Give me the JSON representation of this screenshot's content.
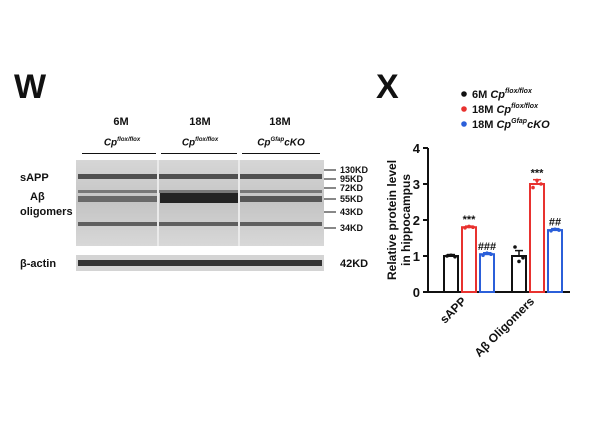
{
  "panel_w": {
    "letter": "W",
    "groups": [
      {
        "age": "6M",
        "genotype": "Cp",
        "superscript": "flox/flox",
        "suffix": ""
      },
      {
        "age": "18M",
        "genotype": "Cp",
        "superscript": "flox/flox",
        "suffix": ""
      },
      {
        "age": "18M",
        "genotype": "Cp",
        "superscript": "Gfap",
        "suffix": "cKO"
      }
    ],
    "band_labels": {
      "sapp": "sAPP",
      "abeta_line1": "Aβ",
      "abeta_line2": "oligomers",
      "actin": "β-actin"
    },
    "mw_markers": [
      "130KD",
      "95KD",
      "72KD",
      "55KD",
      "43KD",
      "34KD"
    ],
    "actin_mw": "42KD"
  },
  "panel_x": {
    "letter": "X",
    "chart_data": {
      "type": "bar",
      "ylabel_line1": "Relative protein level",
      "ylabel_line2": "in hippocampus",
      "ylim": [
        0,
        4
      ],
      "yticks": [
        "0",
        "1",
        "2",
        "3",
        "4"
      ],
      "categories": [
        "sAPP",
        "Aβ Oligomers"
      ],
      "series": [
        {
          "name_prefix": "6M Cp",
          "name_sup": "flox/flox",
          "name_suffix": "",
          "color": "#111111",
          "values": [
            1.0,
            1.0
          ],
          "errors": [
            0.04,
            0.15
          ],
          "points": [
            [
              1.0,
              1.02,
              0.98
            ],
            [
              1.25,
              0.85,
              0.95
            ]
          ],
          "sig": [
            "",
            ""
          ]
        },
        {
          "name_prefix": "18M Cp",
          "name_sup": "flox/flox",
          "name_suffix": "",
          "color": "#e8322f",
          "values": [
            1.8,
            3.0
          ],
          "errors": [
            0.03,
            0.12
          ],
          "points": [
            [
              1.78,
              1.82,
              1.8
            ],
            [
              2.9,
              3.1,
              3.0
            ]
          ],
          "sig": [
            "***",
            "***"
          ]
        },
        {
          "name_prefix": "18M Cp",
          "name_sup": "Gfap",
          "name_suffix": "cKO",
          "color": "#2b5fd9",
          "values": [
            1.05,
            1.72
          ],
          "errors": [
            0.04,
            0.04
          ],
          "points": [
            [
              1.02,
              1.08,
              1.05
            ],
            [
              1.7,
              1.74,
              1.72
            ]
          ],
          "sig": [
            "###",
            "##"
          ]
        }
      ],
      "legend_position": "top-right",
      "grid": false
    }
  }
}
